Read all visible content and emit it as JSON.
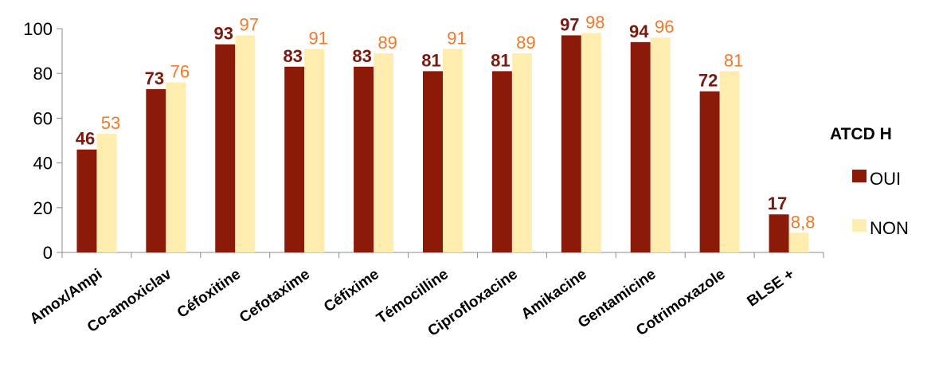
{
  "chart_data": {
    "type": "bar",
    "categories": [
      "Amox/Ampi",
      "Co-amoxiclav",
      "Céfoxitine",
      "Cefotaxime",
      "Céfixime",
      "Témocilline",
      "Ciprofloxacine",
      "Amikacine",
      "Gentamicine",
      "Cotrimoxazole",
      "BLSE +"
    ],
    "series": [
      {
        "name": "OUI",
        "values": [
          46,
          73,
          93,
          83,
          83,
          81,
          81,
          97,
          94,
          72,
          17
        ],
        "labels": [
          "46",
          "73",
          "93",
          "83",
          "83",
          "81",
          "81",
          "97",
          "94",
          "72",
          "17"
        ],
        "color": "#8B1A09",
        "label_color": "#7A1A0E"
      },
      {
        "name": "NON",
        "values": [
          53,
          76,
          97,
          91,
          89,
          91,
          89,
          98,
          96,
          81,
          8.8
        ],
        "labels": [
          "53",
          "76",
          "97",
          "91",
          "89",
          "91",
          "89",
          "98",
          "96",
          "81",
          "8,8"
        ],
        "color": "#FFEDB0",
        "label_color": "#F07A2A"
      }
    ],
    "legend": {
      "title": "ATCD H",
      "position": "right"
    },
    "ylim": [
      0,
      100
    ],
    "yticks": [
      0,
      20,
      40,
      60,
      80,
      100
    ],
    "ytick_labels": [
      "0",
      "20",
      "40",
      "60",
      "80",
      "100"
    ],
    "grid": false
  }
}
